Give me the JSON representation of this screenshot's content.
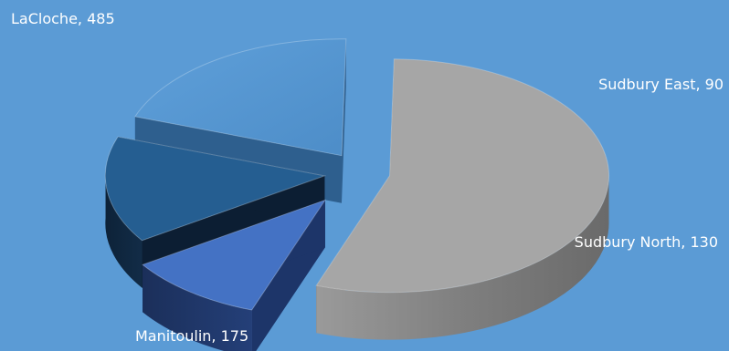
{
  "background_color": "#5b9bd5",
  "chart_data": {
    "type": "pie",
    "style": "3d-exploded",
    "title": "",
    "legend": "none",
    "categories": [
      "LaCloche",
      "Sudbury East",
      "Sudbury North",
      "Manitoulin"
    ],
    "values": [
      485,
      90,
      130,
      175
    ],
    "data_labels": [
      "LaCloche, 485",
      "Sudbury East, 90",
      "Sudbury North, 130",
      "Manitoulin, 175"
    ],
    "colors": [
      "#a6a6a6",
      "#4472c4",
      "#255e91",
      "#5b9bd5"
    ]
  }
}
